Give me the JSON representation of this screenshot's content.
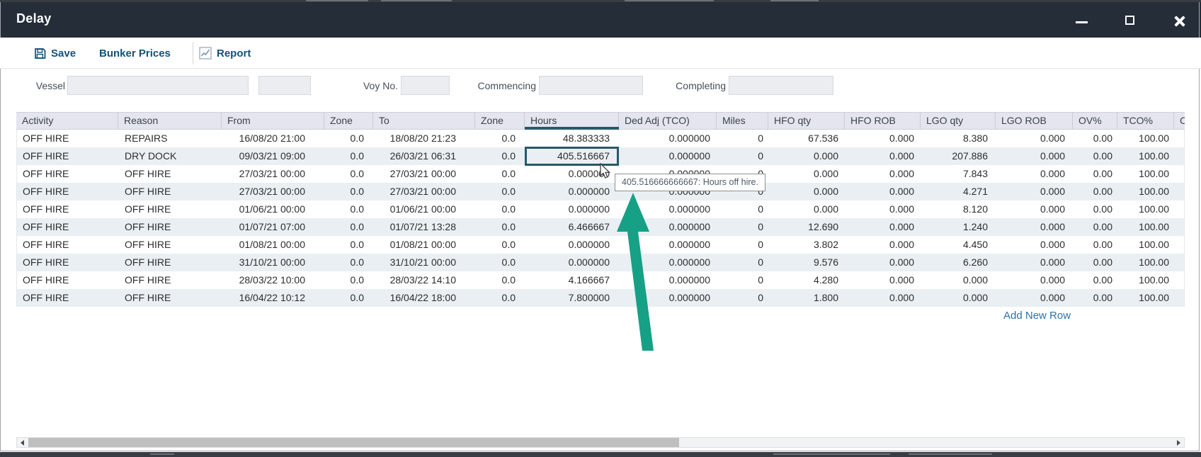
{
  "window": {
    "title": "Delay"
  },
  "toolbar": {
    "save_label": "Save",
    "bunker_prices_label": "Bunker Prices",
    "report_label": "Report"
  },
  "form": {
    "vessel_label": "Vessel",
    "vessel_value": "",
    "vessel_code_value": "",
    "voy_no_label": "Voy No.",
    "voy_no_value": "",
    "commencing_label": "Commencing",
    "commencing_value": "",
    "completing_label": "Completing",
    "completing_value": ""
  },
  "table": {
    "columns": [
      "Activity",
      "Reason",
      "From",
      "Zone",
      "To",
      "Zone",
      "Hours",
      "Ded Adj (TCO)",
      "Miles",
      "HFO qty",
      "HFO ROB",
      "LGO qty",
      "LGO ROB",
      "OV%",
      "TCO%",
      "C"
    ],
    "rows": [
      [
        "OFF HIRE",
        "REPAIRS",
        "16/08/20 21:00",
        "0.0",
        "18/08/20 21:23",
        "0.0",
        "48.383333",
        "0.000000",
        "0",
        "67.536",
        "0.000",
        "8.380",
        "0.000",
        "0.00",
        "100.00",
        ""
      ],
      [
        "OFF HIRE",
        "DRY DOCK",
        "09/03/21 09:00",
        "0.0",
        "26/03/21 06:31",
        "0.0",
        "405.516667",
        "0.000000",
        "0",
        "0.000",
        "0.000",
        "207.886",
        "0.000",
        "0.00",
        "100.00",
        ""
      ],
      [
        "OFF HIRE",
        "OFF HIRE",
        "27/03/21 00:00",
        "0.0",
        "27/03/21 00:00",
        "0.0",
        "0.000000",
        "0.000000",
        "0",
        "0.000",
        "0.000",
        "7.843",
        "0.000",
        "0.00",
        "100.00",
        ""
      ],
      [
        "OFF HIRE",
        "OFF HIRE",
        "27/03/21 00:00",
        "0.0",
        "27/03/21 00:00",
        "0.0",
        "0.000000",
        "0.000000",
        "0",
        "0.000",
        "0.000",
        "4.271",
        "0.000",
        "0.00",
        "100.00",
        ""
      ],
      [
        "OFF HIRE",
        "OFF HIRE",
        "01/06/21 00:00",
        "0.0",
        "01/06/21 00:00",
        "0.0",
        "0.000000",
        "0.000000",
        "0",
        "0.000",
        "0.000",
        "8.120",
        "0.000",
        "0.00",
        "100.00",
        ""
      ],
      [
        "OFF HIRE",
        "OFF HIRE",
        "01/07/21 07:00",
        "0.0",
        "01/07/21 13:28",
        "0.0",
        "6.466667",
        "0.000000",
        "0",
        "12.690",
        "0.000",
        "1.240",
        "0.000",
        "0.00",
        "100.00",
        ""
      ],
      [
        "OFF HIRE",
        "OFF HIRE",
        "01/08/21 00:00",
        "0.0",
        "01/08/21 00:00",
        "0.0",
        "0.000000",
        "0.000000",
        "0",
        "3.802",
        "0.000",
        "4.450",
        "0.000",
        "0.00",
        "100.00",
        ""
      ],
      [
        "OFF HIRE",
        "OFF HIRE",
        "31/10/21 00:00",
        "0.0",
        "31/10/21 00:00",
        "0.0",
        "0.000000",
        "0.000000",
        "0",
        "9.576",
        "0.000",
        "6.260",
        "0.000",
        "0.00",
        "100.00",
        ""
      ],
      [
        "OFF HIRE",
        "OFF HIRE",
        "28/03/22 10:00",
        "0.0",
        "28/03/22 14:10",
        "0.0",
        "4.166667",
        "0.000000",
        "0",
        "4.280",
        "0.000",
        "0.000",
        "0.000",
        "0.00",
        "100.00",
        ""
      ],
      [
        "OFF HIRE",
        "OFF HIRE",
        "16/04/22 10:12",
        "0.0",
        "16/04/22 18:00",
        "0.0",
        "7.800000",
        "0.000000",
        "0",
        "1.800",
        "0.000",
        "0.000",
        "0.000",
        "0.00",
        "100.00",
        ""
      ]
    ],
    "selection": {
      "row_index": 1,
      "col_index": 6,
      "value": "405.516667"
    },
    "sorted_column": "Hours",
    "add_new_row_label": "Add New Row"
  },
  "tooltip": {
    "text": "405.516666666667: Hours off hire."
  },
  "colors": {
    "titlebar": "#242d38",
    "toolbar_text": "#11527b",
    "selection_accent": "#27596b",
    "row_alt": "#e9eff3",
    "link_blue": "#2c71a8",
    "annotation_arrow_green": "#16a085"
  }
}
